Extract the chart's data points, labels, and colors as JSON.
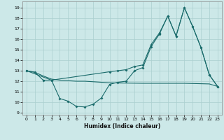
{
  "xlabel": "Humidex (Indice chaleur)",
  "bg_color": "#cce8e8",
  "grid_color": "#aacfcf",
  "line_color": "#1a6b6b",
  "xlim": [
    -0.5,
    23.5
  ],
  "ylim": [
    8.8,
    19.6
  ],
  "xticks": [
    0,
    1,
    2,
    3,
    4,
    5,
    6,
    7,
    8,
    9,
    10,
    11,
    12,
    13,
    14,
    15,
    16,
    17,
    18,
    19,
    20,
    21,
    22,
    23
  ],
  "yticks": [
    9,
    10,
    11,
    12,
    13,
    14,
    15,
    16,
    17,
    18,
    19
  ],
  "line1_x": [
    0,
    1,
    2,
    3,
    4,
    5,
    6,
    7,
    8,
    9,
    10,
    11,
    12,
    13,
    14,
    15,
    16,
    17,
    18,
    19,
    20,
    21,
    22,
    23
  ],
  "line1_y": [
    13.0,
    12.85,
    12.1,
    12.1,
    10.35,
    10.1,
    9.6,
    9.55,
    9.8,
    10.4,
    11.7,
    11.9,
    12.0,
    13.0,
    13.3,
    15.3,
    16.5,
    18.2,
    16.3,
    19.0,
    17.2,
    15.2,
    12.6,
    11.5
  ],
  "line2_x": [
    0,
    1,
    2,
    3,
    4,
    5,
    6,
    7,
    8,
    9,
    10,
    11,
    12,
    13,
    14,
    15,
    16,
    17,
    18,
    19,
    20,
    21,
    22,
    23
  ],
  "line2_y": [
    13.0,
    12.85,
    12.5,
    12.2,
    12.1,
    12.05,
    12.0,
    12.0,
    11.95,
    11.9,
    11.85,
    11.83,
    11.82,
    11.81,
    11.8,
    11.8,
    11.8,
    11.8,
    11.8,
    11.8,
    11.78,
    11.76,
    11.74,
    11.5
  ],
  "line3_x": [
    0,
    3,
    10,
    11,
    12,
    13,
    14,
    15,
    16,
    17,
    18,
    19,
    20,
    21,
    22,
    23
  ],
  "line3_y": [
    13.0,
    12.1,
    12.9,
    13.0,
    13.1,
    13.4,
    13.55,
    15.5,
    16.6,
    18.2,
    16.3,
    19.0,
    17.2,
    15.2,
    12.6,
    11.5
  ]
}
